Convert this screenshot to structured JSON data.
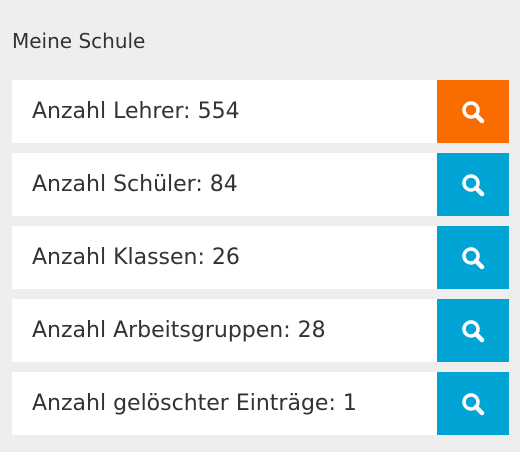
{
  "header": {
    "title": "Meine Schule"
  },
  "rows": [
    {
      "text": "Anzahl Lehrer: 554",
      "button_color": "#f96d00"
    },
    {
      "text": "Anzahl Schüler: 84",
      "button_color": "#00a5d6"
    },
    {
      "text": "Anzahl Klassen: 26",
      "button_color": "#00a5d6"
    },
    {
      "text": "Anzahl Arbeitsgruppen: 28",
      "button_color": "#00a5d6"
    },
    {
      "text": "Anzahl gelöschter Einträge: 1",
      "button_color": "#00a5d6"
    }
  ]
}
